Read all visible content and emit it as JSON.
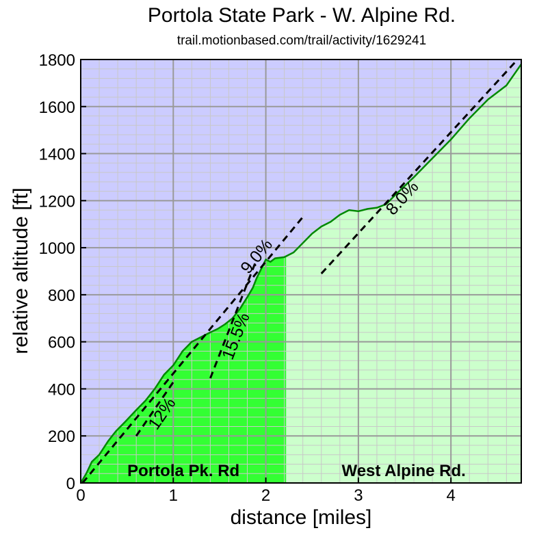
{
  "chart_data": {
    "type": "area",
    "title": "Portola State Park - W. Alpine Rd.",
    "subtitle": "trail.motionbased.com/trail/activity/1629241",
    "xlabel": "distance [miles]",
    "ylabel": "relative altitude [ft]",
    "xlim": [
      0,
      4.76
    ],
    "ylim": [
      0,
      1800
    ],
    "xticks": [
      "0",
      "1",
      "2",
      "3",
      "4"
    ],
    "yticks": [
      "0",
      "200",
      "400",
      "600",
      "800",
      "1000",
      "1200",
      "1400",
      "1600",
      "1800"
    ],
    "grid": true,
    "colors": {
      "plot_background": "#ccccff",
      "segment1_fill": "#33ff33",
      "segment2_fill": "#ccffcc",
      "profile_line": "#008800",
      "grid_major": "#999999",
      "grid_minor": "#c8c8c8"
    },
    "segments": [
      {
        "label": "Portola Pk. Rd",
        "x_start": 0,
        "x_end": 2.22
      },
      {
        "label": "West Alpine Rd.",
        "x_start": 2.22,
        "x_end": 4.76
      }
    ],
    "profile": {
      "x": [
        0,
        0.06,
        0.12,
        0.2,
        0.3,
        0.38,
        0.48,
        0.6,
        0.7,
        0.8,
        0.9,
        1.0,
        1.1,
        1.2,
        1.3,
        1.4,
        1.48,
        1.56,
        1.64,
        1.72,
        1.8,
        1.86,
        1.9,
        1.95,
        2.0,
        2.05,
        2.1,
        2.2,
        2.3,
        2.4,
        2.5,
        2.6,
        2.7,
        2.8,
        2.9,
        3.0,
        3.1,
        3.2,
        3.3,
        3.4,
        3.6,
        3.8,
        4.0,
        4.2,
        4.4,
        4.6,
        4.76
      ],
      "y": [
        0,
        40,
        90,
        120,
        180,
        220,
        260,
        310,
        350,
        400,
        460,
        500,
        560,
        600,
        620,
        640,
        655,
        675,
        700,
        740,
        790,
        830,
        870,
        910,
        950,
        940,
        955,
        960,
        980,
        1020,
        1060,
        1090,
        1110,
        1140,
        1160,
        1155,
        1165,
        1170,
        1185,
        1225,
        1300,
        1380,
        1460,
        1550,
        1630,
        1690,
        1780
      ]
    },
    "annotations": [
      {
        "text": "12%",
        "x0": 0.6,
        "y0": 200,
        "x1": 1.02,
        "y1": 440
      },
      {
        "text": "9.0%",
        "x0": 0.02,
        "y0": 0,
        "x1": 2.42,
        "y1": 1140
      },
      {
        "text": "15.5%",
        "x0": 1.4,
        "y0": 445,
        "x1": 1.9,
        "y1": 950
      },
      {
        "text": "8.0%",
        "x0": 2.6,
        "y0": 890,
        "x1": 4.72,
        "y1": 1800
      }
    ]
  }
}
